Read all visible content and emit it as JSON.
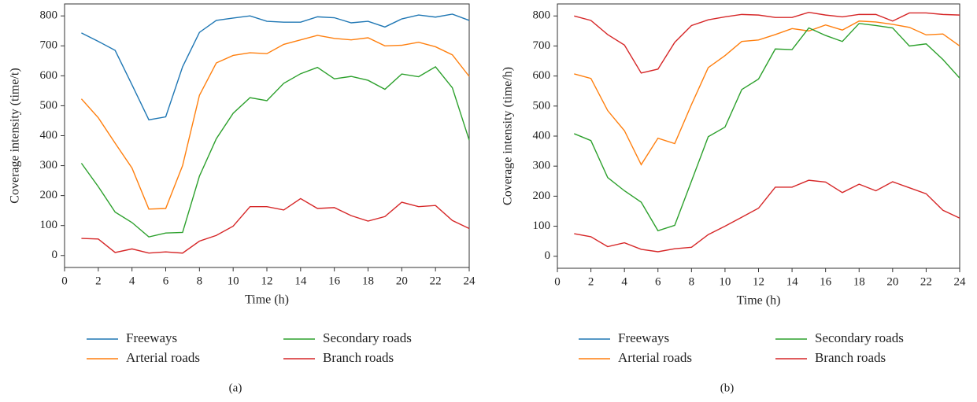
{
  "chart_data": [
    {
      "type": "line",
      "caption": "(a)",
      "xlabel": "Time (h)",
      "ylabel": "Coverage intensity (time/t)",
      "x": [
        1,
        2,
        3,
        4,
        5,
        6,
        7,
        8,
        9,
        10,
        11,
        12,
        13,
        14,
        15,
        16,
        17,
        18,
        19,
        20,
        21,
        22,
        23,
        24
      ],
      "xlim": [
        0,
        24
      ],
      "xticks": [
        0,
        2,
        4,
        6,
        8,
        10,
        12,
        14,
        16,
        18,
        20,
        22,
        24
      ],
      "ylim": [
        -40,
        840
      ],
      "yticks": [
        0,
        100,
        200,
        300,
        400,
        500,
        600,
        700,
        800
      ],
      "series": [
        {
          "name": "Freeways",
          "color": "#1f77b4",
          "values": [
            743,
            715,
            685,
            570,
            453,
            463,
            630,
            745,
            785,
            793,
            800,
            782,
            779,
            779,
            797,
            794,
            777,
            782,
            763,
            790,
            803,
            796,
            806,
            785
          ]
        },
        {
          "name": "Arterial roads",
          "color": "#ff7f0e",
          "values": [
            523,
            460,
            375,
            292,
            155,
            157,
            300,
            535,
            643,
            668,
            677,
            674,
            705,
            720,
            735,
            725,
            720,
            727,
            700,
            702,
            712,
            697,
            670,
            598
          ]
        },
        {
          "name": "Secondary roads",
          "color": "#2ca02c",
          "values": [
            308,
            230,
            145,
            110,
            62,
            75,
            77,
            265,
            390,
            475,
            527,
            517,
            575,
            607,
            628,
            590,
            598,
            585,
            555,
            606,
            597,
            630,
            560,
            385
          ]
        },
        {
          "name": "Branch roads",
          "color": "#d62728",
          "values": [
            57,
            55,
            10,
            22,
            8,
            12,
            8,
            48,
            67,
            98,
            163,
            163,
            152,
            190,
            157,
            160,
            133,
            115,
            130,
            178,
            163,
            167,
            117,
            90
          ]
        }
      ]
    },
    {
      "type": "line",
      "caption": "(b)",
      "xlabel": "Time (h)",
      "ylabel": "Coverage intensity (time/h)",
      "x": [
        1,
        2,
        3,
        4,
        5,
        6,
        7,
        8,
        9,
        10,
        11,
        12,
        13,
        14,
        15,
        16,
        17,
        18,
        19,
        20,
        21,
        22,
        23,
        24
      ],
      "xlim": [
        0,
        24
      ],
      "xticks": [
        0,
        2,
        4,
        6,
        8,
        10,
        12,
        14,
        16,
        18,
        20,
        22,
        24
      ],
      "ylim": [
        -40,
        840
      ],
      "yticks": [
        0,
        100,
        200,
        300,
        400,
        500,
        600,
        700,
        800
      ],
      "series": [
        {
          "name": "Freeways",
          "color": "#1f77b4",
          "line_color": "#d62728",
          "values": [
            800,
            785,
            738,
            703,
            610,
            623,
            712,
            768,
            787,
            797,
            805,
            803,
            795,
            795,
            812,
            803,
            797,
            805,
            805,
            783,
            810,
            810,
            805,
            803
          ]
        },
        {
          "name": "Arterial roads",
          "color": "#ff7f0e",
          "values": [
            607,
            592,
            485,
            418,
            305,
            393,
            375,
            505,
            628,
            668,
            715,
            720,
            738,
            758,
            750,
            770,
            753,
            783,
            780,
            772,
            762,
            737,
            740,
            700
          ]
        },
        {
          "name": "Secondary roads",
          "color": "#2ca02c",
          "values": [
            408,
            385,
            262,
            218,
            180,
            85,
            103,
            250,
            398,
            430,
            555,
            590,
            690,
            688,
            760,
            735,
            715,
            775,
            768,
            760,
            700,
            707,
            655,
            593
          ]
        },
        {
          "name": "Branch roads",
          "color": "#d62728",
          "values": [
            75,
            65,
            32,
            45,
            23,
            15,
            25,
            30,
            72,
            100,
            130,
            160,
            230,
            230,
            253,
            247,
            212,
            240,
            218,
            248,
            228,
            208,
            153,
            127
          ]
        }
      ]
    }
  ]
}
